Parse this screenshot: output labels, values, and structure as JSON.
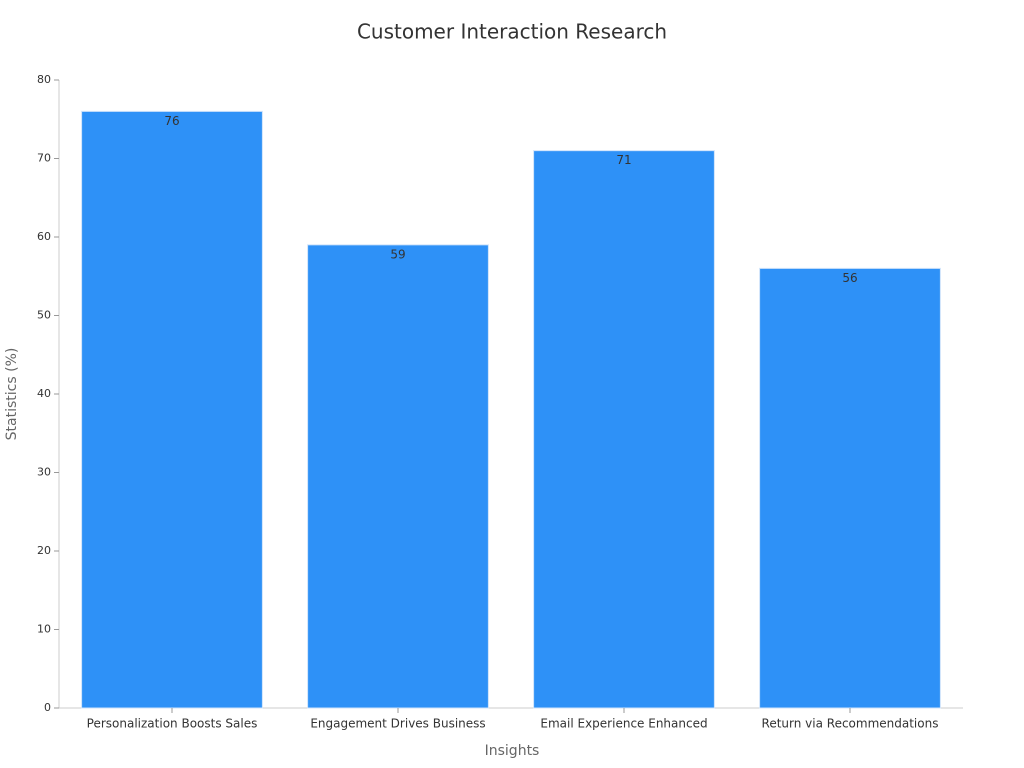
{
  "chart_data": {
    "type": "bar",
    "title": "Customer Interaction Research",
    "x_label": "Insights",
    "y_label": "Statistics (%)",
    "categories": [
      "Personalization Boosts Sales",
      "Engagement Drives Business",
      "Email Experience Enhanced",
      "Return via Recommendations"
    ],
    "values": [
      76,
      59,
      71,
      56
    ],
    "color": "#2e91f7",
    "ylim": [
      0,
      80
    ],
    "yticks": [
      0,
      10,
      20,
      30,
      40,
      50,
      60,
      70,
      80
    ],
    "grid": false
  }
}
